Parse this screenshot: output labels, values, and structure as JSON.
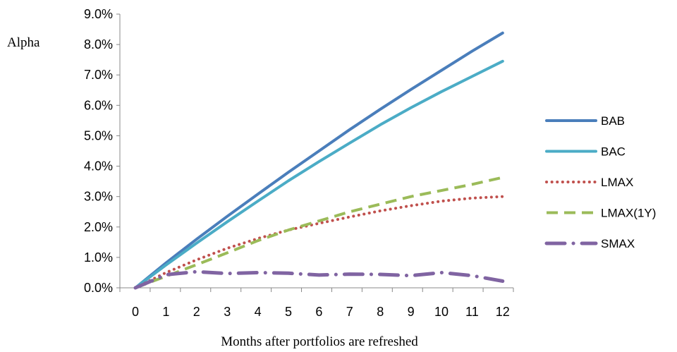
{
  "chart_data": {
    "type": "line",
    "title": "",
    "xlabel": "Months after portfolios are refreshed",
    "ylabel": "Alpha",
    "x": [
      0,
      1,
      2,
      3,
      4,
      5,
      6,
      7,
      8,
      9,
      10,
      11,
      12
    ],
    "x_tick_labels": [
      "0",
      "1",
      "2",
      "3",
      "4",
      "5",
      "6",
      "7",
      "8",
      "9",
      "10",
      "11",
      "12"
    ],
    "ylim": [
      0,
      9
    ],
    "y_ticks": [
      0,
      1,
      2,
      3,
      4,
      5,
      6,
      7,
      8,
      9
    ],
    "y_tick_labels": [
      "0.0%",
      "1.0%",
      "2.0%",
      "3.0%",
      "4.0%",
      "5.0%",
      "6.0%",
      "7.0%",
      "8.0%",
      "9.0%"
    ],
    "y_unit": "%",
    "grid": false,
    "legend_position": "right",
    "series": [
      {
        "name": "BAB",
        "color": "#4a7ebb",
        "style": "solid",
        "values": [
          0,
          0.82,
          1.6,
          2.35,
          3.08,
          3.8,
          4.5,
          5.2,
          5.87,
          6.52,
          7.15,
          7.78,
          8.38
        ]
      },
      {
        "name": "BAC",
        "color": "#4bacc6",
        "style": "solid",
        "values": [
          0,
          0.75,
          1.47,
          2.17,
          2.85,
          3.52,
          4.15,
          4.76,
          5.36,
          5.92,
          6.45,
          6.95,
          7.45
        ]
      },
      {
        "name": "LMAX",
        "color": "#c0504d",
        "style": "dotted",
        "values": [
          0,
          0.5,
          0.92,
          1.3,
          1.62,
          1.9,
          2.12,
          2.33,
          2.53,
          2.7,
          2.85,
          2.95,
          3.0
        ]
      },
      {
        "name": "LMAX(1Y)",
        "color": "#9bbb59",
        "style": "dashed",
        "values": [
          0,
          0.38,
          0.76,
          1.15,
          1.55,
          1.9,
          2.2,
          2.5,
          2.75,
          3.0,
          3.2,
          3.4,
          3.63
        ]
      },
      {
        "name": "SMAX",
        "color": "#8064a2",
        "style": "dashdot",
        "values": [
          0,
          0.43,
          0.53,
          0.47,
          0.5,
          0.48,
          0.42,
          0.45,
          0.44,
          0.4,
          0.5,
          0.4,
          0.22
        ]
      }
    ]
  }
}
